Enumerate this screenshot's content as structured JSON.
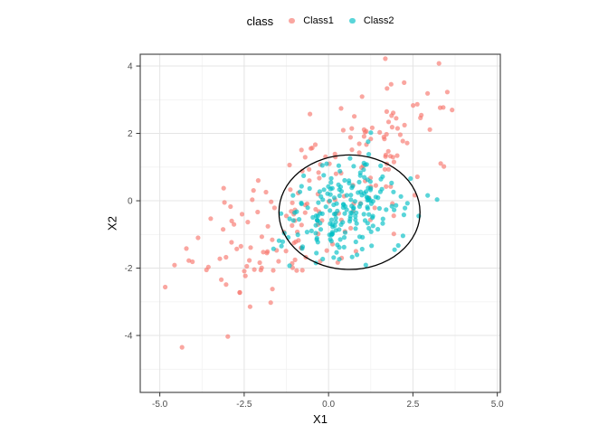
{
  "chart_data": {
    "type": "scatter",
    "title": "",
    "xlabel": "X1",
    "ylabel": "X2",
    "xlim": [
      -5.58,
      5.09
    ],
    "ylim": [
      -5.69,
      4.35
    ],
    "x_ticks": {
      "values": [
        -5.0,
        -2.5,
        0.0,
        2.5,
        5.0
      ],
      "labels": [
        "-5.0",
        "-2.5",
        "0.0",
        "2.5",
        "5.0"
      ]
    },
    "y_ticks": {
      "values": [
        4,
        2,
        0,
        -2,
        -4
      ],
      "labels": [
        "4",
        "2",
        "0",
        "-2",
        "-4"
      ]
    },
    "grid": {
      "background": "#FFFFFF",
      "major_color": "#E4E4E4",
      "minor_color": "#F2F2F2",
      "border_color": "#4D4D4D",
      "tick_color": "#333333",
      "tick_label_color": "#4D4D4D"
    },
    "legend": {
      "title": "class",
      "position": "top",
      "entries": [
        {
          "label": "Class1",
          "color": "#F8766D"
        },
        {
          "label": "Class2",
          "color": "#00BFC4"
        }
      ]
    },
    "point_style": {
      "radius": 2.6,
      "opacity": 0.65
    },
    "series": [
      {
        "name": "Class1",
        "color": "#F8766D",
        "n": 200,
        "distribution": {
          "kind": "bivariate-normal",
          "mean": [
            -0.1,
            0.15
          ],
          "sd": [
            2.0,
            1.8
          ],
          "corr": 0.78,
          "seed": 101
        }
      },
      {
        "name": "Class2",
        "color": "#00BFC4",
        "n": 210,
        "distribution": {
          "kind": "bivariate-normal",
          "mean": [
            0.45,
            -0.25
          ],
          "sd": [
            0.92,
            0.75
          ],
          "corr": 0.25,
          "seed": 202
        }
      }
    ],
    "overlays": [
      {
        "type": "ellipse",
        "label": "confidence-ellipse",
        "center": [
          0.62,
          -0.34
        ],
        "rx": 2.09,
        "ry": 1.7,
        "angle_deg": 0,
        "stroke": "#000000",
        "stroke_width": 1.3
      }
    ]
  }
}
